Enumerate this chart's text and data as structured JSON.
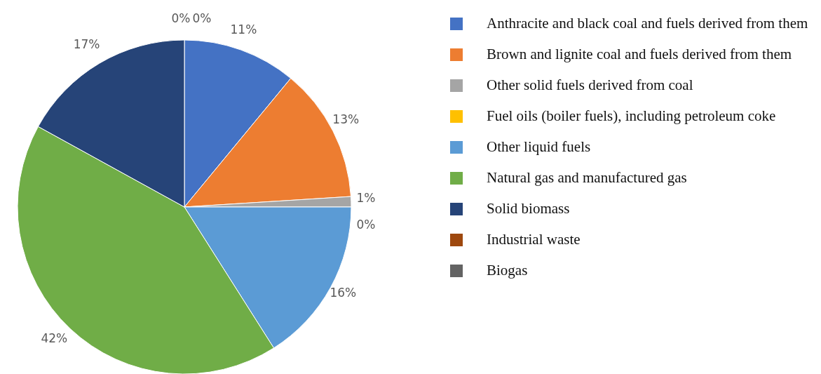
{
  "chart_data": {
    "type": "pie",
    "categories": [
      "Anthracite and black coal and fuels derived from them",
      "Brown and lignite coal and fuels derived from them",
      "Other solid fuels derived from coal",
      "Fuel oils (boiler fuels), including petroleum coke",
      "Other liquid fuels",
      "Natural gas and manufactured gas",
      "Solid biomass",
      "Industrial waste",
      "Biogas"
    ],
    "values": [
      11,
      13,
      1,
      0,
      16,
      42,
      17,
      0,
      0
    ],
    "value_labels": [
      "11%",
      "13%",
      "1%",
      "0%",
      "16%",
      "42%",
      "17%",
      "0%",
      "0%"
    ],
    "colors": [
      "#4472c4",
      "#ed7d31",
      "#a5a5a5",
      "#ffc000",
      "#5b9bd5",
      "#70ad47",
      "#264478",
      "#9e480e",
      "#636363"
    ],
    "legend": "right"
  }
}
